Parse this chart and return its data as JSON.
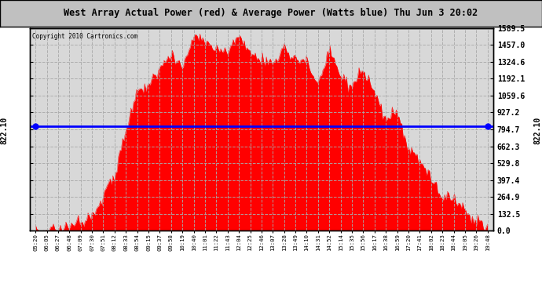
{
  "title": "West Array Actual Power (red) & Average Power (Watts blue) Thu Jun 3 20:02",
  "copyright": "Copyright 2010 Cartronics.com",
  "avg_power": 822.1,
  "y_max": 1589.5,
  "y_min": 0.0,
  "y_ticks": [
    0.0,
    132.5,
    264.9,
    397.4,
    529.8,
    662.3,
    794.7,
    927.2,
    1059.6,
    1192.1,
    1324.6,
    1457.0,
    1589.5
  ],
  "y_tick_labels": [
    "0.0",
    "132.5",
    "264.9",
    "397.4",
    "529.8",
    "662.3",
    "794.7",
    "927.2",
    "1059.6",
    "1192.1",
    "1324.6",
    "1457.0",
    "1589.5"
  ],
  "x_labels": [
    "05:20",
    "06:05",
    "06:27",
    "06:48",
    "07:09",
    "07:30",
    "07:51",
    "08:12",
    "08:33",
    "08:54",
    "09:15",
    "09:37",
    "09:58",
    "10:19",
    "10:40",
    "11:01",
    "11:22",
    "11:43",
    "12:04",
    "12:25",
    "12:46",
    "13:07",
    "13:28",
    "13:49",
    "14:10",
    "14:31",
    "14:52",
    "15:14",
    "15:35",
    "15:56",
    "16:17",
    "16:38",
    "16:59",
    "17:20",
    "17:41",
    "18:02",
    "18:23",
    "18:44",
    "19:05",
    "19:26",
    "19:48"
  ],
  "bg_color": "#ffffff",
  "plot_bg_color": "#d8d8d8",
  "red_color": "#ff0000",
  "blue_color": "#0000ff",
  "grid_color": "#aaaaaa",
  "title_bg": "#c0c0c0",
  "power_curve": [
    2,
    5,
    15,
    40,
    80,
    130,
    220,
    450,
    780,
    1050,
    1200,
    1300,
    1370,
    1420,
    1440,
    1450,
    1460,
    1430,
    1480,
    1420,
    1350,
    1440,
    1380,
    1350,
    1300,
    1250,
    1280,
    1200,
    1150,
    1100,
    1050,
    1000,
    950,
    700,
    530,
    400,
    300,
    230,
    160,
    80,
    30
  ]
}
